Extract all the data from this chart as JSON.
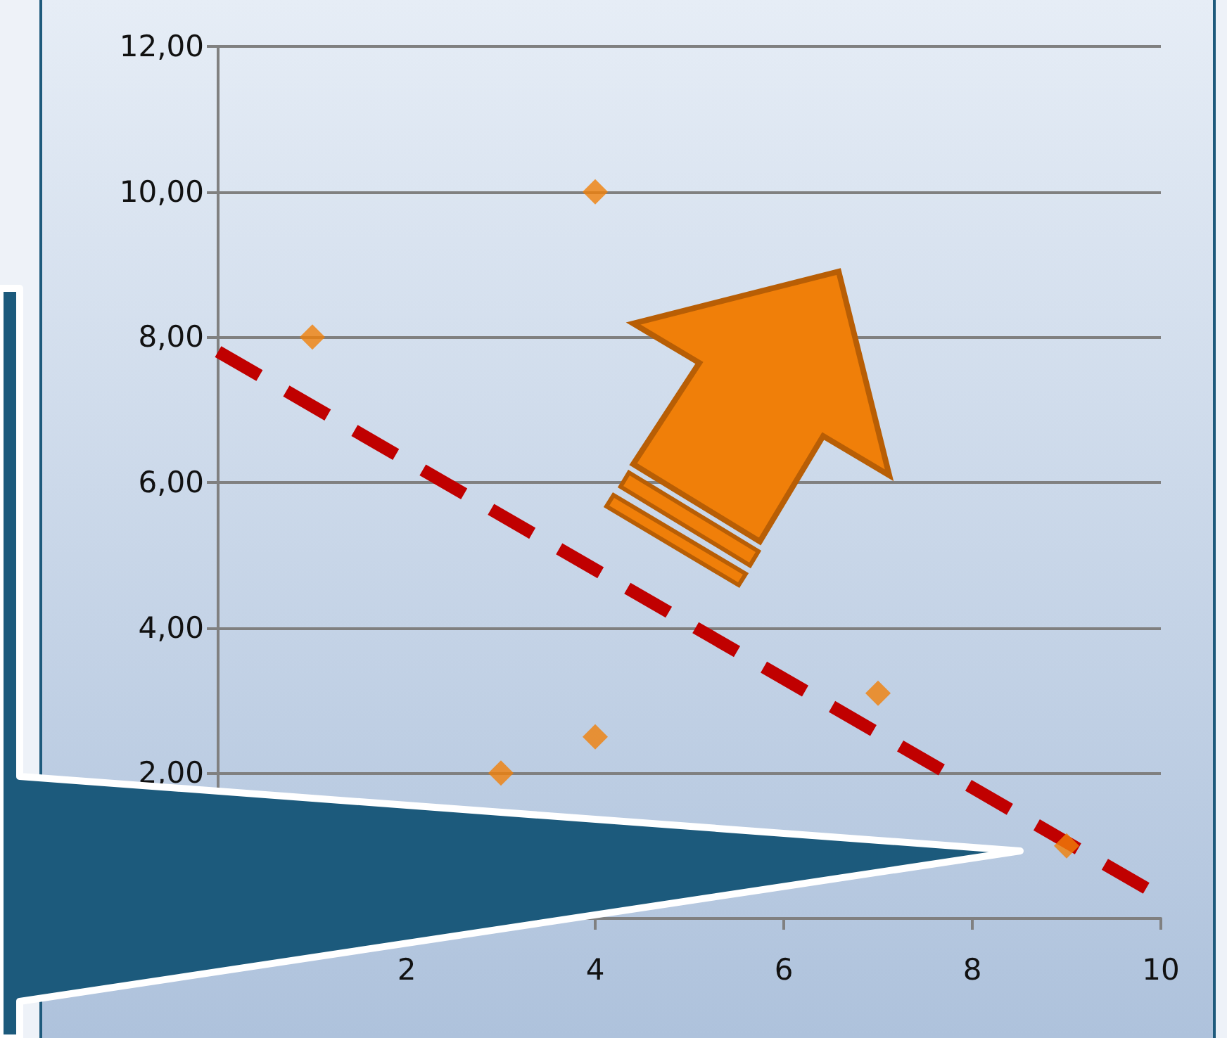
{
  "chart_data": {
    "type": "scatter",
    "series": [
      {
        "color": "#f07f09",
        "x": [
          1,
          3,
          4,
          4,
          7,
          9
        ],
        "values": [
          8,
          2,
          10,
          2.5,
          3.1,
          1
        ],
        "marker": "diamond"
      },
      {
        "type": "line",
        "color": "#c00000",
        "x": [
          0,
          10
        ],
        "values": [
          7.8,
          0.3
        ],
        "line_style": "dashed",
        "marker": "none"
      }
    ],
    "xlim": [
      0,
      10
    ],
    "xticks": [
      2,
      4,
      6,
      8,
      10
    ],
    "ylim": [
      0,
      12
    ],
    "yticks": [
      {
        "value": 0,
        "label": null
      },
      {
        "value": 2,
        "label": "2,00"
      },
      {
        "value": 4,
        "label": "4,00"
      },
      {
        "value": 6,
        "label": "6,00"
      },
      {
        "value": 8,
        "label": "8,00"
      },
      {
        "value": 10,
        "label": "10,00"
      },
      {
        "value": 12,
        "label": "12,00"
      }
    ],
    "grid": "y"
  }
}
